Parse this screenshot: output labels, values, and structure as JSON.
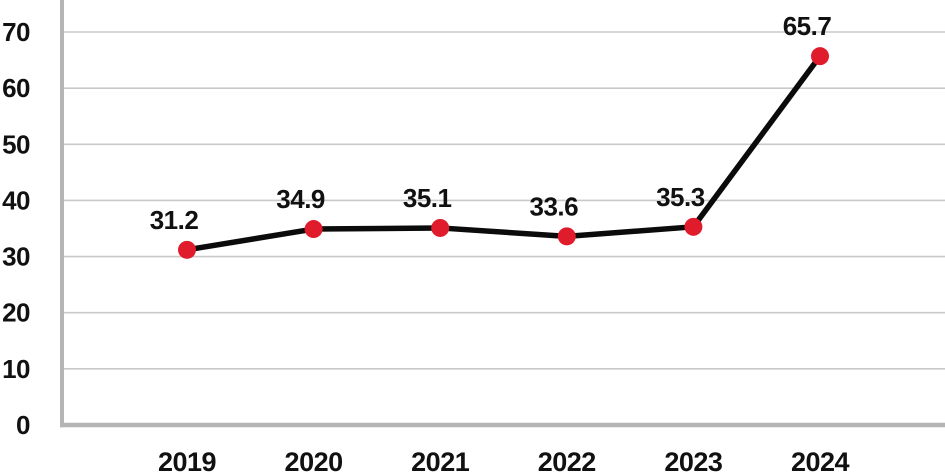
{
  "chart_data": {
    "type": "line",
    "title": "",
    "xlabel": "",
    "ylabel": "",
    "categories": [
      "2019",
      "2020",
      "2021",
      "2022",
      "2023",
      "2024"
    ],
    "series": [
      {
        "name": "value",
        "values": [
          31.2,
          34.9,
          35.1,
          33.6,
          35.3,
          65.7
        ],
        "point_labels": [
          "31.2",
          "34.9",
          "35.1",
          "33.6",
          "35.3",
          "65.7"
        ]
      }
    ],
    "yticks": [
      0,
      10,
      20,
      30,
      40,
      50,
      60,
      70
    ],
    "ytick_labels": [
      "0",
      "10",
      "20",
      "30",
      "40",
      "50",
      "60",
      "70"
    ],
    "ylim": [
      0,
      75.7
    ],
    "grid": "horizontal",
    "legend_position": "none",
    "colors": {
      "line": "#0b0b0b",
      "marker": "#e01b2c",
      "grid": "#c9c9c9",
      "axis": "#b5b5b5",
      "text": "#111111",
      "background": "#ffffff"
    }
  }
}
